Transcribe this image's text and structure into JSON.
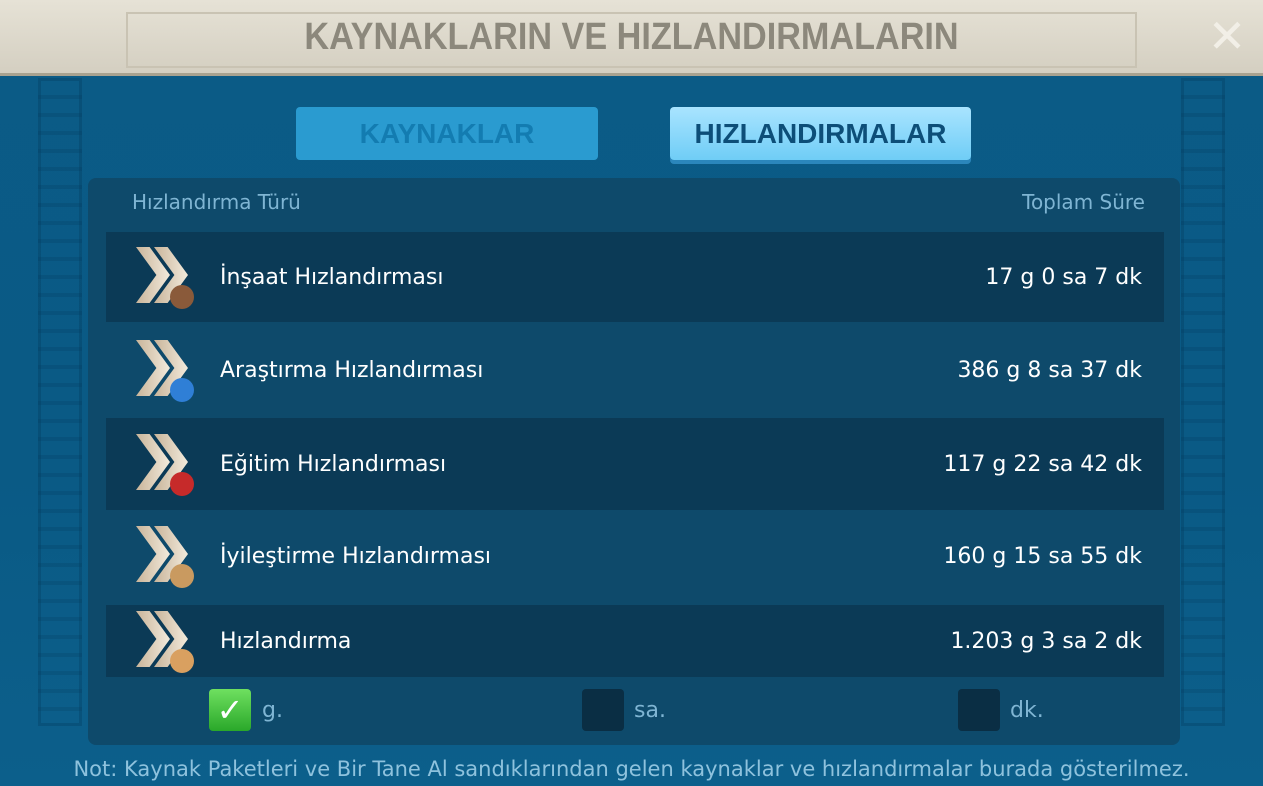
{
  "header": {
    "title": "KAYNAKLARIN VE HIZLANDIRMALARIN",
    "close_icon": "close-icon"
  },
  "tabs": [
    {
      "label": "KAYNAKLAR",
      "active": false
    },
    {
      "label": "HIZLANDIRMALAR",
      "active": true
    }
  ],
  "table": {
    "col_type": "Hızlandırma Türü",
    "col_total": "Toplam Süre",
    "rows": [
      {
        "label": "İnşaat Hızlandırması",
        "value": "17 g 0 sa 7 dk",
        "icon": "construction-speedup-icon",
        "color": "#8a5a3a"
      },
      {
        "label": "Araştırma Hızlandırması",
        "value": "386 g 8 sa 37 dk",
        "icon": "research-speedup-icon",
        "color": "#2f7fd6"
      },
      {
        "label": "Eğitim Hızlandırması",
        "value": "117 g 22 sa 42 dk",
        "icon": "training-speedup-icon",
        "color": "#c62a2a"
      },
      {
        "label": "İyileştirme Hızlandırması",
        "value": "160 g 15 sa 55 dk",
        "icon": "healing-speedup-icon",
        "color": "#c99a60"
      },
      {
        "label": "Hızlandırma",
        "value": "1.203 g 3 sa 2 dk",
        "icon": "universal-speedup-icon",
        "color": "#d9a060"
      }
    ]
  },
  "units": [
    {
      "label": "g.",
      "checked": true
    },
    {
      "label": "sa.",
      "checked": false
    },
    {
      "label": "dk.",
      "checked": false
    }
  ],
  "note": "Not: Kaynak Paketleri ve Bir Tane Al sandıklarından gelen kaynaklar ve hızlandırmalar burada gösterilmez."
}
